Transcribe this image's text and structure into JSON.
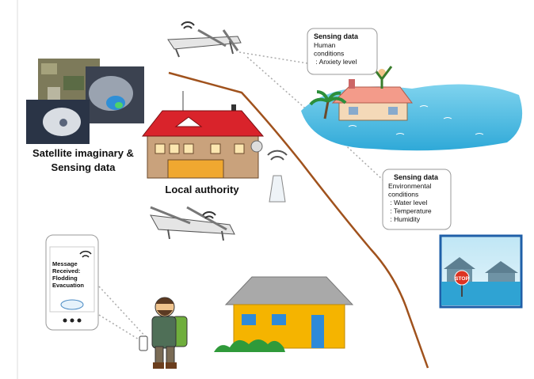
{
  "satellite": {
    "label": [
      "Satellite imaginary &",
      "Sensing data"
    ]
  },
  "authority": {
    "label": "Local authority"
  },
  "callouts": [
    {
      "title": "Sensing data",
      "lines": [
        "Human",
        "conditions",
        " : Anxiety level"
      ]
    },
    {
      "title": "Sensing data",
      "lines": [
        "Environmental",
        "conditions",
        " : Water level",
        " : Temperature",
        " : Humidity"
      ]
    }
  ],
  "phone": {
    "message": [
      "Message",
      "Received:",
      "Flodding",
      "Evacuation"
    ]
  },
  "sign": "STOP"
}
